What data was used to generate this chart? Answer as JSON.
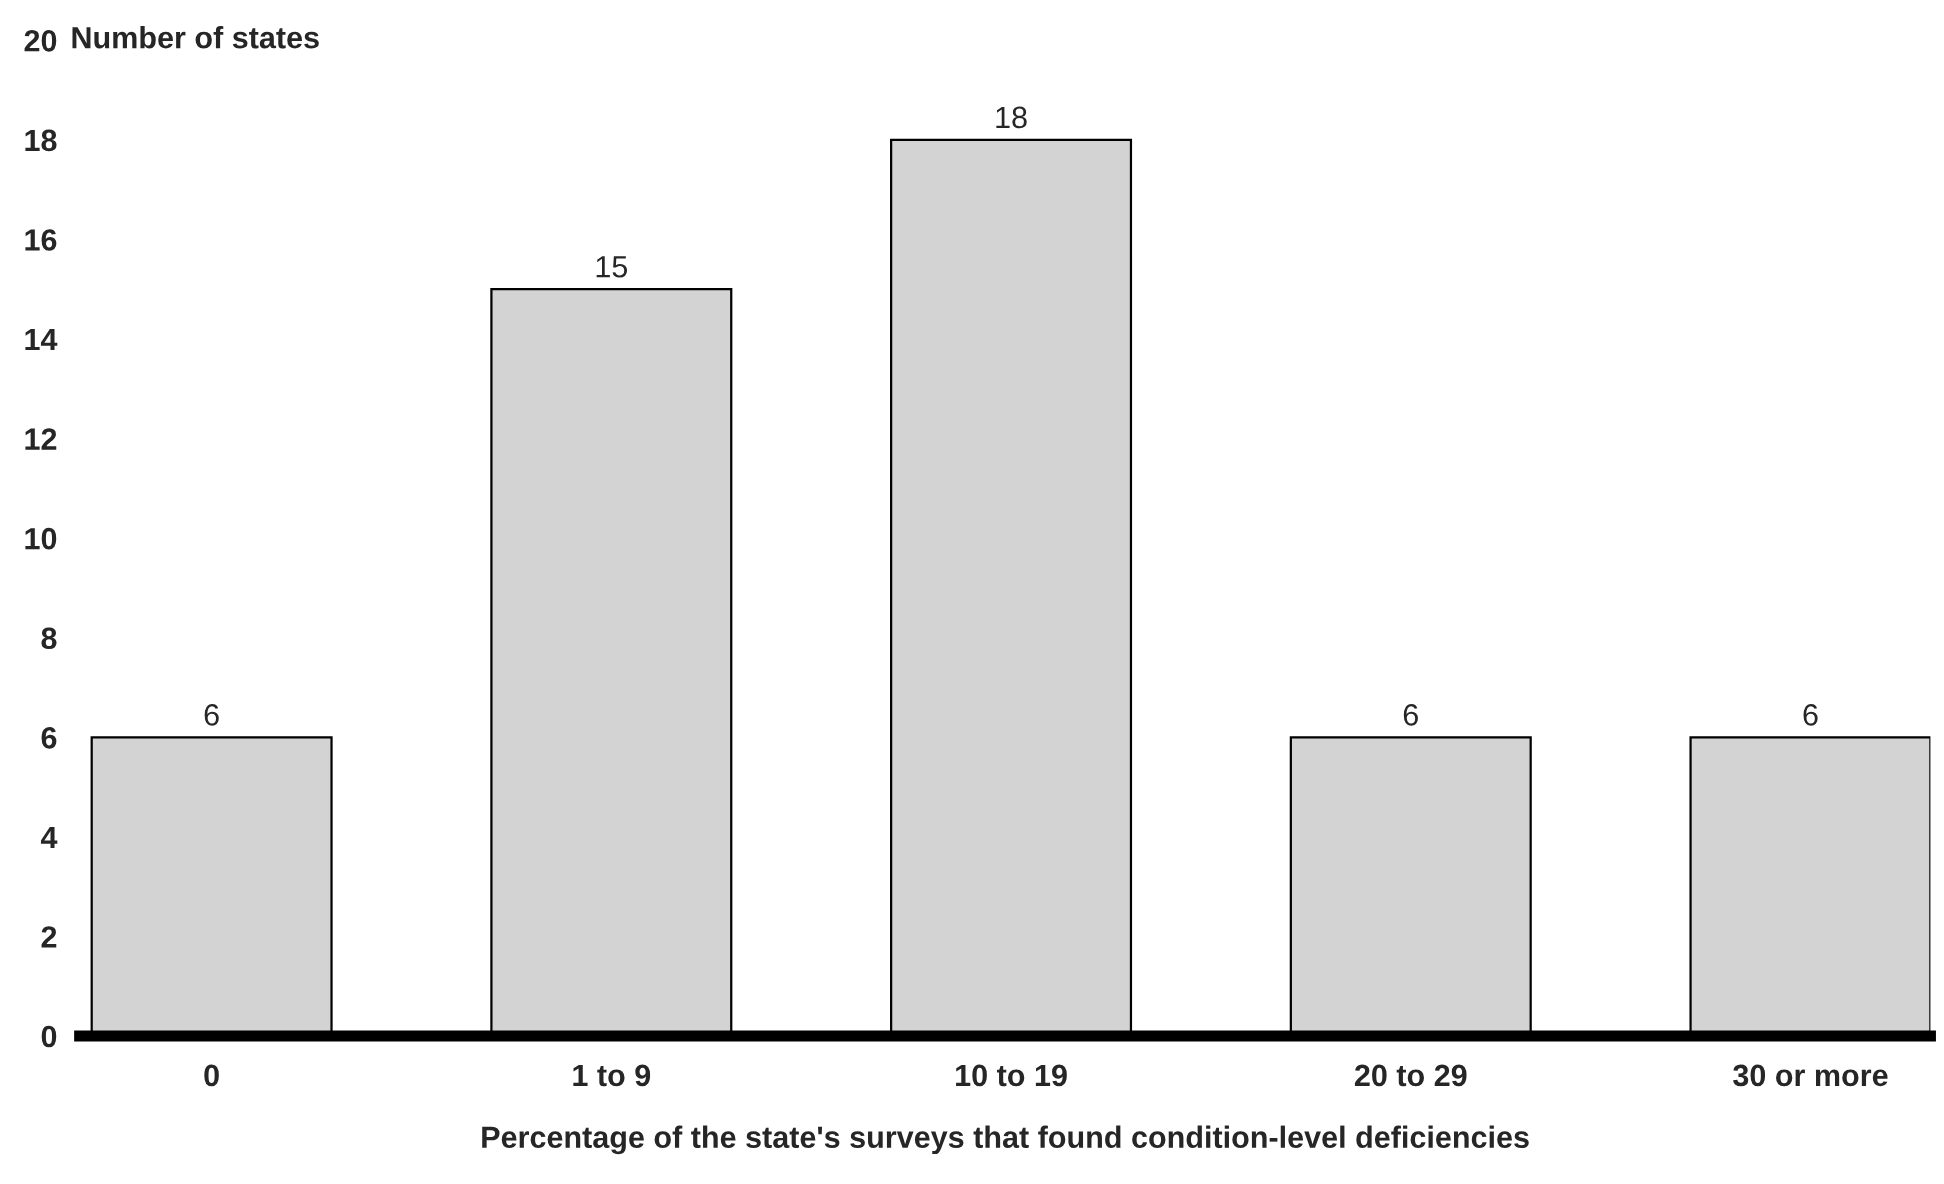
{
  "chart_data": {
    "type": "bar",
    "xlabel": "Percentage of the state's surveys that found condition-level deficiencies",
    "ylabel": "Number of states",
    "categories": [
      "0",
      "1 to 9",
      "10 to 19",
      "20 to 29",
      "30 or more"
    ],
    "values": [
      6,
      15,
      18,
      6,
      6
    ],
    "color": "#d3d3d3",
    "ylim": [
      0,
      20
    ],
    "yticks": [
      0,
      2,
      4,
      6,
      8,
      10,
      12,
      14,
      16,
      18,
      20
    ],
    "data_labels": true,
    "grid": false
  }
}
